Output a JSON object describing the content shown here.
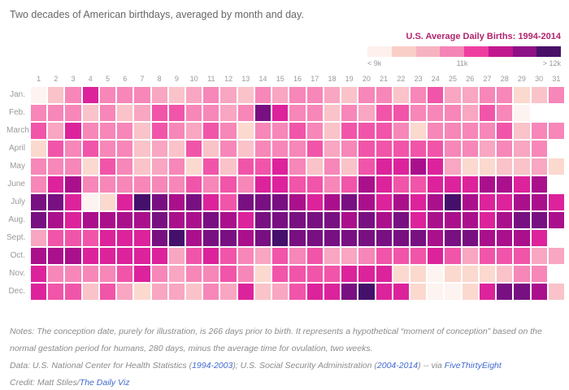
{
  "title": "Two decades of American birthdays, averaged by month and day.",
  "legend": {
    "title": "U.S. Average Daily Births: 1994-2014",
    "label_min": "< 9k",
    "label_mid": "11k",
    "label_max": "> 12k",
    "colors": [
      "#fdf0ed",
      "#f9cec7",
      "#f7b2c1",
      "#f584b6",
      "#ee3fa1",
      "#c2188f",
      "#8e1186",
      "#491068"
    ]
  },
  "chart_data": {
    "type": "heatmap",
    "title": "U.S. Average Daily Births: 1994-2014",
    "x_labels": [
      "1",
      "2",
      "3",
      "4",
      "5",
      "6",
      "7",
      "8",
      "9",
      "10",
      "11",
      "12",
      "13",
      "14",
      "15",
      "16",
      "17",
      "18",
      "19",
      "20",
      "21",
      "22",
      "23",
      "24",
      "25",
      "26",
      "27",
      "28",
      "29",
      "30",
      "31"
    ],
    "y_labels": [
      "Jan.",
      "Feb.",
      "March",
      "April",
      "May",
      "June",
      "July",
      "Aug.",
      "Sept.",
      "Oct.",
      "Nov.",
      "Dec."
    ],
    "unit": "average daily births, thousands",
    "value_range_labels": [
      "< 9k",
      "11k",
      "> 12k"
    ],
    "palette": [
      "#fdf3f0",
      "#fbd9cf",
      "#f9c3c9",
      "#f8a6c1",
      "#f687b8",
      "#f155a9",
      "#dc239c",
      "#aa108c",
      "#781082",
      "#45106b"
    ],
    "level_to_births_k": [
      8.2,
      9.0,
      9.6,
      10.1,
      10.5,
      10.9,
      11.3,
      11.7,
      12.1,
      12.5
    ],
    "levels": [
      [
        0,
        2,
        4,
        6,
        4,
        4,
        4,
        3,
        2,
        3,
        4,
        3,
        2,
        4,
        3,
        4,
        4,
        3,
        2,
        4,
        4,
        2,
        4,
        5,
        3,
        3,
        4,
        4,
        1,
        2,
        4
      ],
      [
        4,
        4,
        4,
        2,
        4,
        2,
        3,
        5,
        5,
        4,
        4,
        3,
        4,
        8,
        6,
        4,
        4,
        2,
        4,
        3,
        5,
        5,
        4,
        4,
        4,
        3,
        5,
        4,
        0,
        null,
        null
      ],
      [
        5,
        3,
        6,
        4,
        4,
        4,
        2,
        5,
        4,
        3,
        5,
        4,
        1,
        4,
        4,
        5,
        4,
        2,
        5,
        5,
        5,
        4,
        1,
        4,
        4,
        4,
        4,
        5,
        2,
        4,
        4
      ],
      [
        1,
        5,
        4,
        5,
        4,
        4,
        2,
        3,
        2,
        5,
        2,
        4,
        2,
        4,
        4,
        4,
        5,
        3,
        4,
        5,
        5,
        5,
        5,
        5,
        4,
        4,
        3,
        4,
        3,
        4,
        null
      ],
      [
        4,
        4,
        4,
        1,
        5,
        4,
        2,
        3,
        4,
        1,
        5,
        2,
        5,
        5,
        6,
        4,
        2,
        4,
        2,
        5,
        6,
        6,
        7,
        6,
        3,
        1,
        1,
        2,
        2,
        3,
        1
      ],
      [
        4,
        6,
        7,
        4,
        4,
        4,
        4,
        4,
        4,
        5,
        4,
        5,
        4,
        6,
        6,
        5,
        5,
        4,
        5,
        7,
        6,
        5,
        5,
        6,
        6,
        6,
        7,
        7,
        6,
        7,
        null
      ],
      [
        8,
        8,
        6,
        0,
        1,
        6,
        9,
        8,
        7,
        8,
        6,
        5,
        8,
        8,
        8,
        7,
        6,
        7,
        8,
        7,
        6,
        7,
        6,
        7,
        9,
        7,
        6,
        6,
        7,
        7,
        6
      ],
      [
        8,
        7,
        6,
        7,
        7,
        7,
        7,
        8,
        7,
        7,
        8,
        7,
        6,
        8,
        8,
        8,
        8,
        8,
        7,
        8,
        7,
        8,
        6,
        7,
        7,
        7,
        6,
        7,
        8,
        8,
        7
      ],
      [
        3,
        5,
        5,
        5,
        6,
        6,
        6,
        8,
        9,
        7,
        8,
        8,
        7,
        8,
        9,
        8,
        8,
        8,
        8,
        8,
        8,
        8,
        8,
        7,
        8,
        8,
        7,
        7,
        7,
        6,
        null
      ],
      [
        7,
        7,
        7,
        6,
        6,
        6,
        6,
        6,
        3,
        5,
        6,
        5,
        4,
        3,
        5,
        4,
        5,
        3,
        3,
        4,
        5,
        5,
        5,
        6,
        5,
        3,
        5,
        5,
        5,
        3,
        3
      ],
      [
        6,
        4,
        4,
        4,
        4,
        5,
        6,
        4,
        3,
        4,
        4,
        5,
        4,
        1,
        5,
        5,
        5,
        5,
        6,
        6,
        6,
        1,
        1,
        0,
        1,
        1,
        1,
        2,
        4,
        4,
        null
      ],
      [
        6,
        5,
        5,
        2,
        5,
        3,
        1,
        3,
        3,
        2,
        4,
        3,
        6,
        2,
        3,
        5,
        6,
        6,
        8,
        9,
        6,
        6,
        1,
        0,
        0,
        1,
        6,
        8,
        8,
        7,
        2
      ]
    ]
  },
  "footer": {
    "notes": "Notes: The conception date, purely for illustration, is 266 days prior to birth. It represents a hypothetical “moment of conception” based on the normal gestation period for humans, 280 days, minus the average time for ovulation, two weeks.",
    "data_segments": [
      {
        "text": "Data: U.S. National Center for Health Statistics (",
        "link": false
      },
      {
        "text": "1994-2003",
        "link": true
      },
      {
        "text": "); U.S. Social Security Administration (",
        "link": false
      },
      {
        "text": "2004-2014",
        "link": true
      },
      {
        "text": ") -- via ",
        "link": false
      },
      {
        "text": "FiveThirtyEight",
        "link": true
      }
    ],
    "credit_segments": [
      {
        "text": "Credit: Matt Stiles/",
        "link": false
      },
      {
        "text": "The Daily Viz",
        "link": true
      }
    ]
  }
}
